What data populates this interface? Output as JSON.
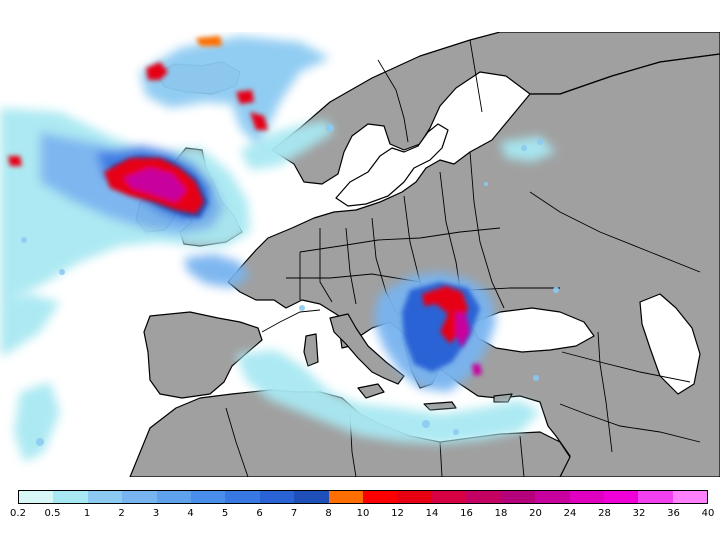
{
  "map": {
    "land_color": "#a0a0a0",
    "sea_color": "#ffffff",
    "border_color": "#000000"
  },
  "legend": {
    "colors": [
      "#d8f7f7",
      "#a8e8f2",
      "#8ccaf2",
      "#78b4f0",
      "#5ea2ee",
      "#4a8eec",
      "#3778e2",
      "#2a63d6",
      "#1f4fb8",
      "#ff6e00",
      "#ff0000",
      "#e60012",
      "#d70042",
      "#c40062",
      "#b4007a",
      "#c8009e",
      "#e000c0",
      "#f000d8",
      "#f040f0",
      "#ff80ff"
    ],
    "labels": [
      "0.2",
      "0.5",
      "1",
      "2",
      "3",
      "4",
      "5",
      "6",
      "7",
      "8",
      "10",
      "12",
      "14",
      "16",
      "18",
      "20",
      "24",
      "28",
      "32",
      "36",
      "40"
    ]
  }
}
